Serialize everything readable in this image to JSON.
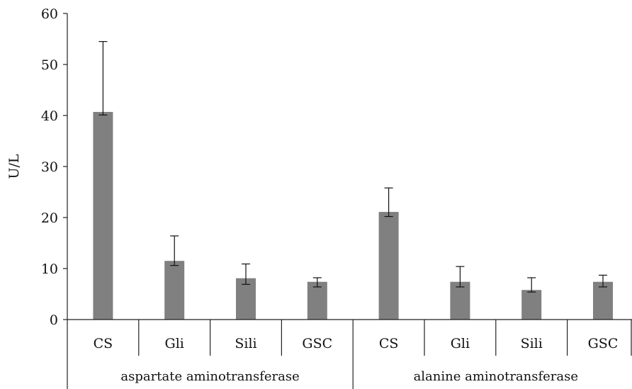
{
  "chart_data": {
    "type": "bar",
    "title": "",
    "ylabel": "U/L",
    "ylim": [
      0,
      60
    ],
    "yticks": [
      "0",
      "10",
      "20",
      "30",
      "40",
      "50",
      "60"
    ],
    "groups": [
      {
        "label": "aspartate aminotransferase",
        "categories": [
          "CS",
          "Gli",
          "Sili",
          "GSC"
        ],
        "values": [
          40.7,
          11.5,
          8.1,
          7.4
        ],
        "error_upper": [
          54.5,
          16.4,
          10.9,
          8.2
        ],
        "error_lower": [
          40.1,
          10.6,
          6.9,
          6.4
        ]
      },
      {
        "label": "alanine aminotransferase",
        "categories": [
          "CS",
          "Gli",
          "Sili",
          "GSC"
        ],
        "values": [
          21.1,
          7.4,
          5.8,
          7.4
        ],
        "error_upper": [
          25.8,
          10.4,
          8.2,
          8.7
        ],
        "error_lower": [
          20.2,
          6.4,
          5.4,
          6.4
        ]
      }
    ],
    "bar_color": "#808080",
    "legend": "none",
    "grid": false
  }
}
